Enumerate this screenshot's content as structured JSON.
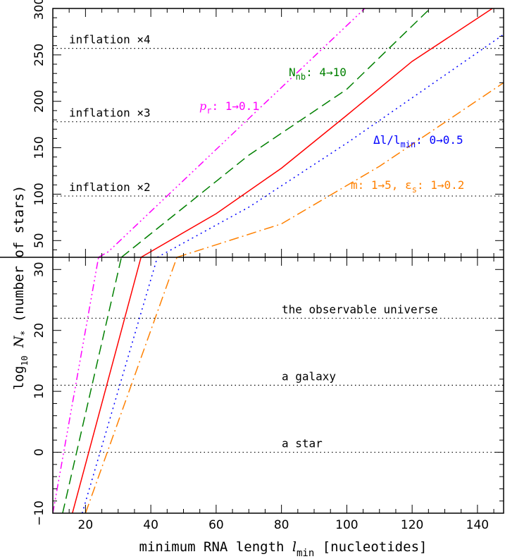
{
  "chart_data": {
    "type": "line",
    "xlabel": "minimum RNA length",
    "xlabel_symbol": "l",
    "xlabel_sub": "min",
    "xlabel_units": "[nucleotides]",
    "ylabel": "log",
    "ylabel_sub": "10",
    "ylabel_symbol": "N",
    "ylabel_star": "*",
    "ylabel_rest": "(number of stars)",
    "xlim": [
      10,
      148
    ],
    "x_ticks": [
      20,
      40,
      60,
      80,
      100,
      120,
      140
    ],
    "panels": [
      {
        "name": "upper",
        "ylim": [
          32,
          300
        ],
        "y_ticks": [
          50,
          100,
          150,
          200,
          250,
          300
        ],
        "reference_lines": [
          {
            "y": 257,
            "label": "inflation ×4"
          },
          {
            "y": 178,
            "label": "inflation ×3"
          },
          {
            "y": 98,
            "label": "inflation ×2"
          }
        ]
      },
      {
        "name": "lower",
        "ylim": [
          -10,
          32
        ],
        "y_ticks": [
          -10,
          0,
          10,
          20,
          30
        ],
        "y_tick_labels": [
          "−10",
          "0",
          "10",
          "20",
          "30"
        ],
        "reference_lines": [
          {
            "y": 22,
            "label": "the observable universe"
          },
          {
            "y": 11,
            "label": "a galaxy"
          },
          {
            "y": 0,
            "label": "a star"
          }
        ]
      }
    ],
    "series": [
      {
        "color": "#ff0000",
        "dash": "",
        "lower": [
          [
            16,
            -10
          ],
          [
            37,
            32
          ]
        ],
        "upper": [
          [
            37,
            32
          ],
          [
            60,
            79
          ],
          [
            80,
            128
          ],
          [
            100,
            185
          ],
          [
            120,
            243
          ],
          [
            148,
            308
          ]
        ]
      },
      {
        "color": "#ff00ff",
        "dash": "10 4 2 4 2 4 2 4",
        "label_main": "p",
        "label_sub": "r",
        "label_rest": ": 1→0.1",
        "lower": [
          [
            10,
            -10
          ],
          [
            24,
            32
          ]
        ],
        "upper": [
          [
            24,
            32
          ],
          [
            27,
            38
          ],
          [
            107,
            305
          ]
        ]
      },
      {
        "color": "#008000",
        "dash": "14 7",
        "label_main": "N",
        "label_sub": "nb",
        "label_rest": ": 4→10",
        "lower": [
          [
            13,
            -10
          ],
          [
            31,
            32
          ]
        ],
        "upper": [
          [
            31,
            32
          ],
          [
            70,
            142
          ],
          [
            100,
            213
          ],
          [
            127,
            305
          ]
        ]
      },
      {
        "color": "#0000ff",
        "dash": "2 5",
        "label_main": "Δl/l",
        "label_sub": "min",
        "label_rest": ": 0→0.5",
        "lower": [
          [
            19,
            -10
          ],
          [
            42,
            32
          ]
        ],
        "upper": [
          [
            42,
            32
          ],
          [
            70,
            86
          ],
          [
            100,
            155
          ],
          [
            148,
            272
          ]
        ]
      },
      {
        "color": "#ff8000",
        "dash": "14 5 2 5",
        "label_main": "m: 1→5, ε",
        "label_sub": "s",
        "label_rest": ": 1→0.2",
        "lower": [
          [
            20,
            -10
          ],
          [
            48,
            32
          ]
        ],
        "upper": [
          [
            48,
            32
          ],
          [
            80,
            68
          ],
          [
            110,
            130
          ],
          [
            148,
            220
          ]
        ]
      }
    ]
  }
}
